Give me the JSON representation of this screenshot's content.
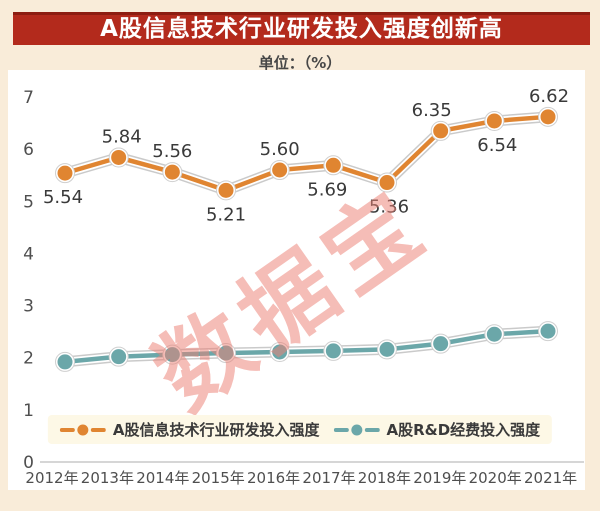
{
  "page": {
    "title": "A股信息技术行业研发投入强度创新高",
    "unit_label": "单位：（%）",
    "watermark": "数据宝"
  },
  "colors": {
    "title_bar": "#b32a1c",
    "title_bar_top_edge": "#8d1d11",
    "page_background": "#f9ecd9",
    "plot_background": "#ffffff",
    "legend_background": "#fdf8e6",
    "watermark_pink": "#ec8176",
    "axis_text": "#4f4f4f",
    "data_label_text": "#3a3a3a",
    "line_casing": "#cacaca",
    "zero_axis_line": "#c8c8c8"
  },
  "chart_data": {
    "type": "line",
    "title": "A股信息技术行业研发投入强度创新高",
    "unit": "%",
    "categories": [
      "2012年",
      "2013年",
      "2014年",
      "2015年",
      "2016年",
      "2017年",
      "2018年",
      "2019年",
      "2020年",
      "2021年"
    ],
    "series": [
      {
        "name": "A股信息技术行业研发投入强度",
        "color": "#e08531",
        "values": [
          5.54,
          5.84,
          5.56,
          5.21,
          5.6,
          5.69,
          5.36,
          6.35,
          6.54,
          6.62
        ],
        "labels": [
          "5.54",
          "5.84",
          "5.56",
          "5.21",
          "5.60",
          "5.69",
          "5.36",
          "6.35",
          "6.54",
          "6.62"
        ],
        "label_pos": [
          "below",
          "above",
          "above",
          "below",
          "above",
          "below",
          "below",
          "above",
          "below",
          "above"
        ],
        "label_dx": [
          -2,
          3,
          0,
          0,
          0,
          -6,
          2,
          -9,
          3,
          1
        ]
      },
      {
        "name": "A股R&D经费投入强度",
        "color": "#6ba7a9",
        "values": [
          1.92,
          2.02,
          2.06,
          2.09,
          2.11,
          2.13,
          2.16,
          2.27,
          2.45,
          2.51
        ],
        "labels": null
      }
    ],
    "ylim": [
      0,
      7
    ],
    "yticks": [
      0,
      1,
      2,
      3,
      4,
      5,
      6,
      7
    ],
    "grid": false,
    "legend_position": "bottom"
  }
}
